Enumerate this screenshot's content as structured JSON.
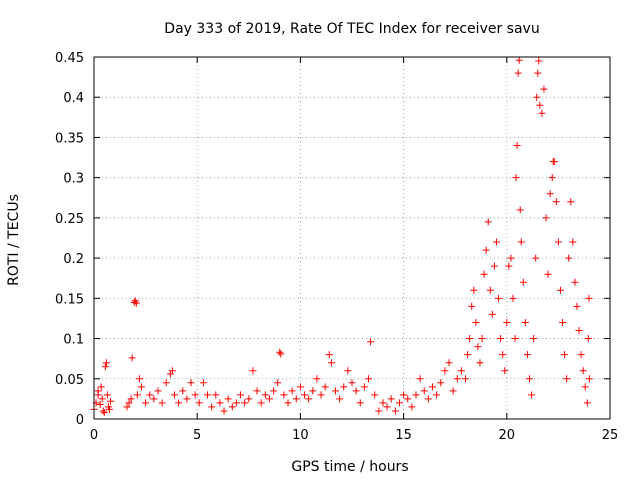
{
  "chart_data": {
    "type": "scatter",
    "title": "Day 333 of 2019, Rate Of TEC Index for receiver savu",
    "xlabel": "GPS time / hours",
    "ylabel": "ROTI / TECUs",
    "xlim": [
      0,
      25
    ],
    "ylim": [
      0,
      0.45
    ],
    "xticks": [
      0,
      5,
      10,
      15,
      20,
      25
    ],
    "xtick_labels": [
      "0",
      "5",
      "10",
      "15",
      "20",
      "25"
    ],
    "yticks": [
      0,
      0.05,
      0.1,
      0.15,
      0.2,
      0.25,
      0.3,
      0.35,
      0.4,
      0.45
    ],
    "ytick_labels": [
      "0",
      "0.05",
      "0.1",
      "0.15",
      "0.2",
      "0.25",
      "0.3",
      "0.35",
      "0.4",
      "0.45"
    ],
    "grid": true,
    "marker": "+",
    "color": "#ff0000",
    "series": [
      {
        "name": "ROTI",
        "points": [
          [
            0.0,
            0.012
          ],
          [
            0.1,
            0.02
          ],
          [
            0.2,
            0.03
          ],
          [
            0.3,
            0.018
          ],
          [
            0.4,
            0.025
          ],
          [
            0.5,
            0.008
          ],
          [
            0.55,
            0.065
          ],
          [
            0.6,
            0.07
          ],
          [
            0.7,
            0.015
          ],
          [
            0.8,
            0.022
          ],
          [
            0.2,
            0.035
          ],
          [
            0.35,
            0.04
          ],
          [
            0.45,
            0.01
          ],
          [
            0.65,
            0.03
          ],
          [
            0.75,
            0.012
          ],
          [
            1.6,
            0.015
          ],
          [
            1.7,
            0.02
          ],
          [
            1.8,
            0.025
          ],
          [
            1.85,
            0.076
          ],
          [
            1.95,
            0.145
          ],
          [
            2.0,
            0.147
          ],
          [
            2.05,
            0.144
          ],
          [
            2.1,
            0.03
          ],
          [
            2.2,
            0.05
          ],
          [
            2.3,
            0.04
          ],
          [
            2.5,
            0.02
          ],
          [
            2.7,
            0.03
          ],
          [
            2.9,
            0.025
          ],
          [
            3.1,
            0.035
          ],
          [
            3.3,
            0.02
          ],
          [
            3.5,
            0.045
          ],
          [
            3.7,
            0.056
          ],
          [
            3.8,
            0.06
          ],
          [
            3.9,
            0.03
          ],
          [
            4.1,
            0.02
          ],
          [
            4.3,
            0.035
          ],
          [
            4.5,
            0.025
          ],
          [
            4.7,
            0.045
          ],
          [
            4.9,
            0.03
          ],
          [
            5.1,
            0.02
          ],
          [
            5.3,
            0.045
          ],
          [
            5.5,
            0.03
          ],
          [
            5.7,
            0.015
          ],
          [
            5.9,
            0.03
          ],
          [
            6.1,
            0.02
          ],
          [
            6.3,
            0.01
          ],
          [
            6.5,
            0.025
          ],
          [
            6.7,
            0.015
          ],
          [
            6.9,
            0.02
          ],
          [
            7.1,
            0.03
          ],
          [
            7.3,
            0.02
          ],
          [
            7.5,
            0.025
          ],
          [
            7.7,
            0.06
          ],
          [
            7.9,
            0.035
          ],
          [
            8.1,
            0.02
          ],
          [
            8.3,
            0.03
          ],
          [
            8.5,
            0.025
          ],
          [
            8.7,
            0.035
          ],
          [
            8.9,
            0.045
          ],
          [
            9.0,
            0.083
          ],
          [
            9.05,
            0.081
          ],
          [
            9.2,
            0.03
          ],
          [
            9.4,
            0.02
          ],
          [
            9.6,
            0.035
          ],
          [
            9.8,
            0.025
          ],
          [
            10.0,
            0.04
          ],
          [
            10.2,
            0.03
          ],
          [
            10.4,
            0.025
          ],
          [
            10.6,
            0.035
          ],
          [
            10.8,
            0.05
          ],
          [
            11.0,
            0.03
          ],
          [
            11.2,
            0.04
          ],
          [
            11.4,
            0.08
          ],
          [
            11.5,
            0.07
          ],
          [
            11.7,
            0.035
          ],
          [
            11.9,
            0.025
          ],
          [
            12.1,
            0.04
          ],
          [
            12.3,
            0.06
          ],
          [
            12.5,
            0.045
          ],
          [
            12.7,
            0.035
          ],
          [
            12.9,
            0.02
          ],
          [
            13.1,
            0.04
          ],
          [
            13.3,
            0.05
          ],
          [
            13.4,
            0.096
          ],
          [
            13.6,
            0.03
          ],
          [
            13.8,
            0.01
          ],
          [
            14.0,
            0.02
          ],
          [
            14.2,
            0.015
          ],
          [
            14.4,
            0.025
          ],
          [
            14.6,
            0.01
          ],
          [
            14.8,
            0.02
          ],
          [
            15.0,
            0.03
          ],
          [
            15.2,
            0.025
          ],
          [
            15.4,
            0.015
          ],
          [
            15.6,
            0.03
          ],
          [
            15.8,
            0.05
          ],
          [
            16.0,
            0.035
          ],
          [
            16.2,
            0.025
          ],
          [
            16.4,
            0.04
          ],
          [
            16.6,
            0.03
          ],
          [
            16.8,
            0.045
          ],
          [
            17.0,
            0.06
          ],
          [
            17.2,
            0.07
          ],
          [
            17.4,
            0.035
          ],
          [
            17.6,
            0.05
          ],
          [
            17.8,
            0.06
          ],
          [
            18.0,
            0.05
          ],
          [
            18.1,
            0.08
          ],
          [
            18.2,
            0.1
          ],
          [
            18.3,
            0.14
          ],
          [
            18.4,
            0.16
          ],
          [
            18.5,
            0.12
          ],
          [
            18.6,
            0.09
          ],
          [
            18.7,
            0.07
          ],
          [
            18.8,
            0.1
          ],
          [
            18.9,
            0.18
          ],
          [
            19.0,
            0.21
          ],
          [
            19.1,
            0.245
          ],
          [
            19.2,
            0.16
          ],
          [
            19.3,
            0.13
          ],
          [
            19.4,
            0.19
          ],
          [
            19.5,
            0.22
          ],
          [
            19.6,
            0.15
          ],
          [
            19.7,
            0.1
          ],
          [
            19.8,
            0.08
          ],
          [
            19.9,
            0.06
          ],
          [
            20.0,
            0.12
          ],
          [
            20.1,
            0.19
          ],
          [
            20.2,
            0.2
          ],
          [
            20.3,
            0.15
          ],
          [
            20.4,
            0.1
          ],
          [
            20.45,
            0.3
          ],
          [
            20.5,
            0.34
          ],
          [
            20.55,
            0.43
          ],
          [
            20.6,
            0.446
          ],
          [
            20.65,
            0.26
          ],
          [
            20.7,
            0.22
          ],
          [
            20.8,
            0.17
          ],
          [
            20.9,
            0.12
          ],
          [
            21.0,
            0.08
          ],
          [
            21.1,
            0.05
          ],
          [
            21.2,
            0.03
          ],
          [
            21.3,
            0.1
          ],
          [
            21.4,
            0.2
          ],
          [
            21.45,
            0.4
          ],
          [
            21.5,
            0.43
          ],
          [
            21.55,
            0.445
          ],
          [
            21.6,
            0.39
          ],
          [
            21.7,
            0.38
          ],
          [
            21.8,
            0.41
          ],
          [
            21.9,
            0.25
          ],
          [
            22.0,
            0.18
          ],
          [
            22.1,
            0.28
          ],
          [
            22.2,
            0.3
          ],
          [
            22.25,
            0.32
          ],
          [
            22.3,
            0.32
          ],
          [
            22.4,
            0.27
          ],
          [
            22.5,
            0.22
          ],
          [
            22.6,
            0.16
          ],
          [
            22.7,
            0.12
          ],
          [
            22.8,
            0.08
          ],
          [
            22.9,
            0.05
          ],
          [
            23.0,
            0.2
          ],
          [
            23.1,
            0.27
          ],
          [
            23.2,
            0.22
          ],
          [
            23.3,
            0.17
          ],
          [
            23.4,
            0.14
          ],
          [
            23.5,
            0.11
          ],
          [
            23.6,
            0.08
          ],
          [
            23.7,
            0.06
          ],
          [
            23.8,
            0.04
          ],
          [
            23.9,
            0.02
          ],
          [
            23.95,
            0.1
          ],
          [
            23.98,
            0.15
          ],
          [
            24.0,
            0.05
          ]
        ]
      }
    ]
  }
}
